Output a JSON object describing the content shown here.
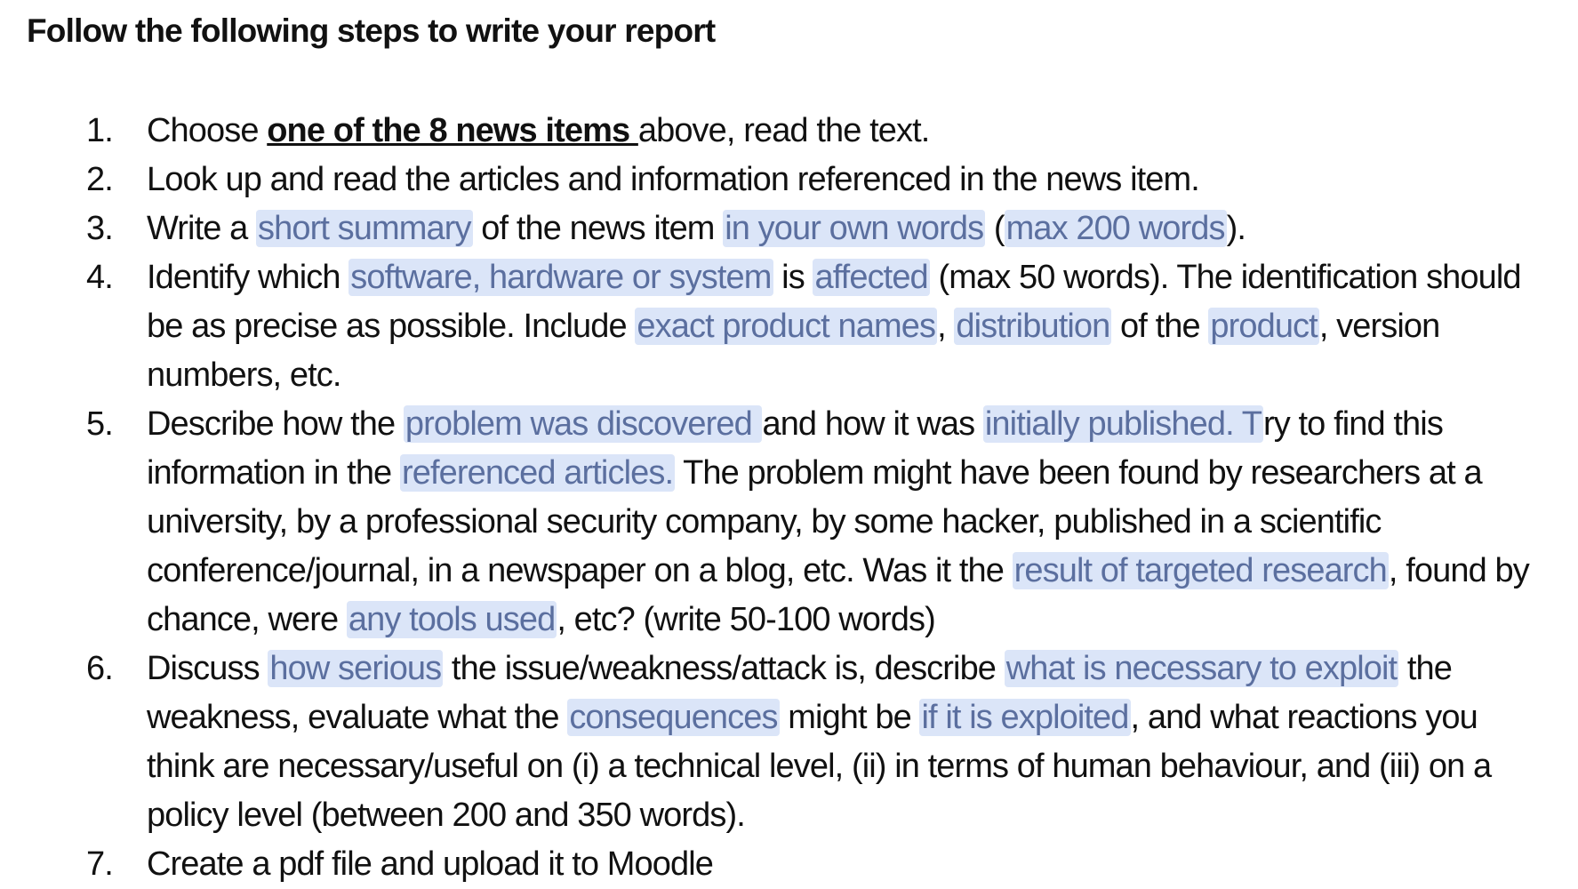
{
  "heading": "Follow the following steps to write your report",
  "steps": [
    {
      "number": "1.",
      "parts": [
        "Choose ",
        "one of the 8 news items ",
        "above, read the text."
      ]
    },
    {
      "number": "2.",
      "text": "Look up and read the articles and information referenced in the news item."
    },
    {
      "number": "3.",
      "parts": [
        "Write a ",
        "short summary",
        " of the news item ",
        "in your own words",
        " (",
        "max 200 words",
        ")."
      ]
    },
    {
      "number": "4.",
      "parts": [
        "Identify which ",
        "software, hardware or system",
        " is ",
        "affected",
        " (max 50 words). The identification should be as precise as possible. Include ",
        "exact product names",
        ", ",
        "distribution",
        " of the ",
        "product",
        ", version numbers, etc."
      ]
    },
    {
      "number": "5.",
      "parts": [
        "Describe how the ",
        "problem was discovered ",
        "and how it was ",
        "initially published. T",
        "ry to find this information in the ",
        "referenced articles.",
        " The problem might have been found by researchers at a university, by a professional security company, by some hacker, published in a scientific conference/journal, in a newspaper on a blog, etc. Was it the ",
        "result of targeted research",
        ", found by chance, were ",
        "any tools used",
        ", etc? (write 50-100 words)"
      ]
    },
    {
      "number": "6.",
      "parts": [
        "Discuss ",
        "how serious",
        " the issue/weakness/attack is, describe ",
        "what is necessary to exploit",
        " the weakness, evaluate what the ",
        "consequences",
        " might be ",
        "if it is exploited",
        ", and what reactions you think are necessary/useful on (i) a technical level, (ii) in terms of human behaviour, and (iii) on a policy level (between 200 and 350 words)."
      ]
    },
    {
      "number": "7.",
      "text": "Create a pdf file and upload it to Moodle"
    }
  ],
  "colors": {
    "text": "#111111",
    "highlight_background": "#dbe5f8",
    "highlight_text": "#5b6f9f"
  }
}
